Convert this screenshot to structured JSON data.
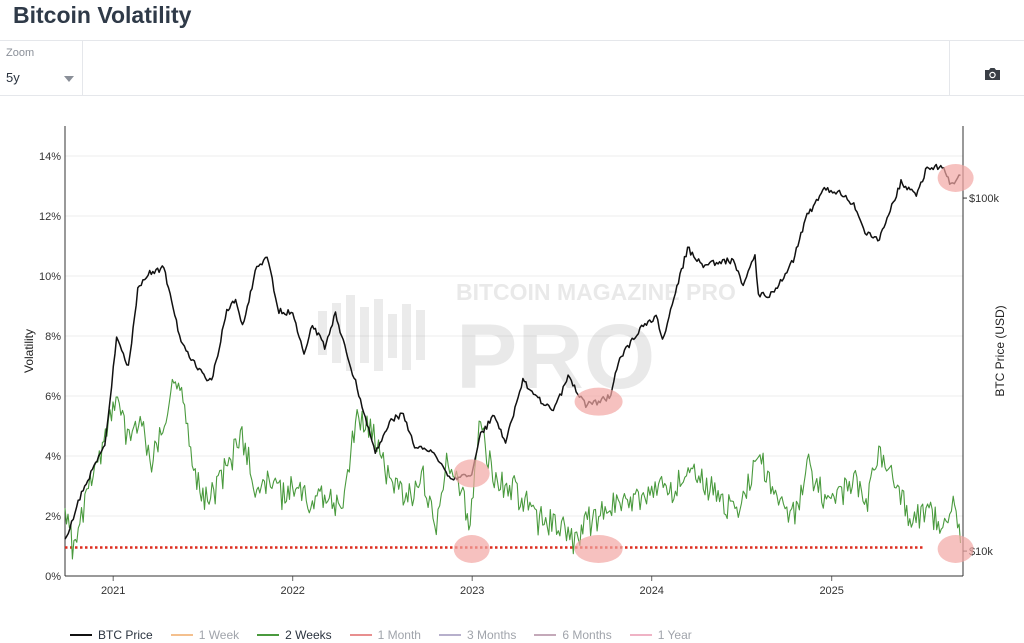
{
  "page_title": "Bitcoin Volatility",
  "toolbar": {
    "zoom_caption": "Zoom",
    "zoom_value": "5y",
    "camera_icon": "camera-icon"
  },
  "colors": {
    "btc_price": "#111111",
    "vol_2w": "#4a9a3e",
    "reference_line": "#dd2c1f",
    "highlight": "#f2a7a4"
  },
  "watermark": "BITCOIN MAGAZINE PRO",
  "legend": [
    {
      "label": "BTC Price",
      "color": "#111111",
      "active": true
    },
    {
      "label": "1 Week",
      "color": "#f4c08e",
      "active": false
    },
    {
      "label": "2 Weeks",
      "color": "#4a9a3e",
      "active": true
    },
    {
      "label": "1 Month",
      "color": "#e88f8f",
      "active": false
    },
    {
      "label": "3 Months",
      "color": "#b7b0cc",
      "active": false
    },
    {
      "label": "6 Months",
      "color": "#c4a9b9",
      "active": false
    },
    {
      "label": "1 Year",
      "color": "#efb3c5",
      "active": false
    }
  ],
  "chart_data": {
    "type": "line",
    "title": "",
    "xlabel": "",
    "ylabel": "Volatility",
    "y2label": "BTC Price (USD)",
    "x_range": [
      "2020-09-25",
      "2025-09-25"
    ],
    "x_ticks": [
      "2021",
      "2022",
      "2023",
      "2024",
      "2025"
    ],
    "ylim": [
      0,
      15
    ],
    "y_ticks": [
      "0%",
      "2%",
      "4%",
      "6%",
      "8%",
      "10%",
      "12%",
      "14%"
    ],
    "y2_scale": "log",
    "y2lim": [
      8500,
      160000
    ],
    "y2_ticks": [
      "$10k",
      "$100k"
    ],
    "y2_tick_values": [
      10000,
      100000
    ],
    "grid": true,
    "legend_position": "bottom",
    "reference_line": {
      "y": 0.95
    },
    "series": [
      {
        "name": "BTC Price",
        "axis": "y2",
        "x": [
          "2020-09-25",
          "2020-11-01",
          "2020-12-15",
          "2021-01-08",
          "2021-02-01",
          "2021-02-20",
          "2021-03-13",
          "2021-04-14",
          "2021-05-19",
          "2021-06-22",
          "2021-07-20",
          "2021-08-20",
          "2021-09-07",
          "2021-09-21",
          "2021-10-20",
          "2021-11-10",
          "2021-12-04",
          "2022-01-01",
          "2022-01-24",
          "2022-02-10",
          "2022-03-07",
          "2022-03-29",
          "2022-05-12",
          "2022-06-18",
          "2022-07-20",
          "2022-08-14",
          "2022-09-06",
          "2022-10-15",
          "2022-11-09",
          "2022-11-21",
          "2022-12-31",
          "2023-01-15",
          "2023-02-15",
          "2023-03-10",
          "2023-04-14",
          "2023-05-15",
          "2023-06-15",
          "2023-07-15",
          "2023-08-20",
          "2023-09-15",
          "2023-10-10",
          "2023-10-25",
          "2023-12-05",
          "2024-01-10",
          "2024-01-23",
          "2024-02-15",
          "2024-03-14",
          "2024-04-15",
          "2024-05-15",
          "2024-06-15",
          "2024-07-05",
          "2024-07-29",
          "2024-08-05",
          "2024-09-06",
          "2024-10-15",
          "2024-11-12",
          "2024-12-17",
          "2025-01-20",
          "2025-02-15",
          "2025-03-10",
          "2025-04-08",
          "2025-05-22",
          "2025-06-22",
          "2025-07-14",
          "2025-08-14",
          "2025-09-01",
          "2025-09-20"
        ],
        "values": [
          10700,
          15000,
          20000,
          40000,
          33000,
          55000,
          61000,
          63500,
          39000,
          33000,
          30000,
          48000,
          52000,
          43000,
          64000,
          67500,
          48000,
          47000,
          36000,
          44000,
          38000,
          47000,
          29000,
          19000,
          23500,
          24400,
          19800,
          19200,
          16500,
          15800,
          16600,
          21000,
          24300,
          20300,
          30500,
          27000,
          25000,
          31000,
          26000,
          26500,
          27500,
          34500,
          42000,
          46500,
          39500,
          52000,
          72000,
          64000,
          66000,
          66500,
          57000,
          69000,
          53000,
          53500,
          67000,
          89000,
          106000,
          104000,
          96000,
          80000,
          76000,
          111000,
          101000,
          122000,
          123000,
          109000,
          116000
        ]
      },
      {
        "name": "2 Weeks",
        "axis": "y",
        "x": [
          "2020-09-25",
          "2020-10-10",
          "2020-10-25",
          "2020-11-15",
          "2020-12-10",
          "2021-01-10",
          "2021-01-30",
          "2021-02-25",
          "2021-03-20",
          "2021-04-25",
          "2021-05-20",
          "2021-06-20",
          "2021-07-15",
          "2021-08-15",
          "2021-09-20",
          "2021-10-20",
          "2021-11-20",
          "2021-12-10",
          "2022-01-10",
          "2022-02-10",
          "2022-03-10",
          "2022-04-10",
          "2022-05-12",
          "2022-06-18",
          "2022-07-20",
          "2022-08-20",
          "2022-09-20",
          "2022-10-20",
          "2022-11-10",
          "2022-12-10",
          "2022-12-28",
          "2023-01-15",
          "2023-02-15",
          "2023-03-15",
          "2023-04-15",
          "2023-05-15",
          "2023-06-15",
          "2023-07-15",
          "2023-08-05",
          "2023-08-20",
          "2023-09-25",
          "2023-10-25",
          "2023-11-25",
          "2023-12-25",
          "2024-01-15",
          "2024-02-15",
          "2024-03-15",
          "2024-04-15",
          "2024-05-15",
          "2024-06-15",
          "2024-07-15",
          "2024-08-05",
          "2024-09-15",
          "2024-10-15",
          "2024-11-15",
          "2024-12-15",
          "2025-01-15",
          "2025-02-15",
          "2025-03-15",
          "2025-04-10",
          "2025-05-15",
          "2025-06-15",
          "2025-07-15",
          "2025-08-15",
          "2025-09-05",
          "2025-09-20"
        ],
        "values": [
          1.9,
          1.0,
          1.6,
          3.0,
          4.2,
          6.0,
          4.5,
          5.2,
          3.6,
          5.9,
          6.2,
          3.0,
          2.3,
          3.4,
          4.6,
          2.8,
          3.2,
          2.6,
          3.0,
          2.3,
          2.6,
          2.0,
          5.4,
          4.6,
          3.0,
          2.4,
          3.3,
          1.8,
          3.8,
          2.7,
          1.5,
          5.2,
          3.0,
          3.0,
          2.5,
          1.8,
          1.8,
          1.2,
          0.9,
          1.7,
          2.0,
          2.6,
          2.3,
          2.8,
          3.0,
          2.5,
          3.8,
          3.0,
          2.6,
          2.0,
          2.8,
          4.0,
          2.2,
          1.9,
          3.5,
          2.6,
          2.6,
          3.2,
          2.4,
          4.2,
          2.6,
          1.8,
          2.1,
          1.6,
          2.2,
          1.1
        ]
      }
    ],
    "annotations": [
      {
        "type": "circle",
        "x": "2022-12-31",
        "axis": "y2",
        "y": 16600
      },
      {
        "type": "circle",
        "x": "2023-09-15",
        "axis": "y2",
        "y": 26500
      },
      {
        "type": "circle",
        "x": "2025-09-10",
        "axis": "y2",
        "y": 114000
      },
      {
        "type": "circle",
        "x": "2022-12-31",
        "axis": "y",
        "y": 0.9
      },
      {
        "type": "circle",
        "x": "2023-09-15",
        "axis": "y",
        "y": 0.9
      },
      {
        "type": "circle",
        "x": "2025-09-10",
        "axis": "y",
        "y": 0.9
      }
    ]
  }
}
